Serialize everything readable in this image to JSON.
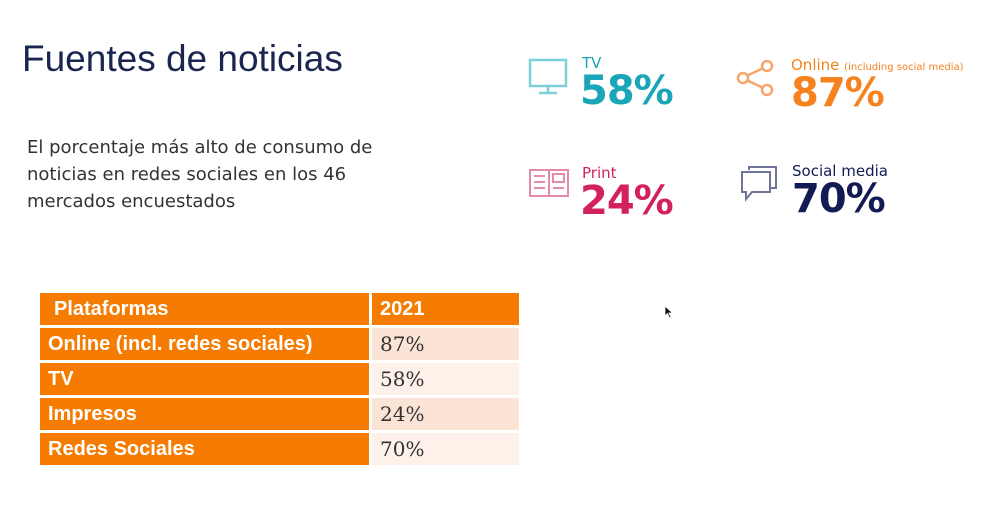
{
  "title": "Fuentes de noticias",
  "subtitle": "El porcentaje más alto de consumo de noticias en redes sociales en los 46 mercados encuestados",
  "stats": [
    {
      "label": "TV",
      "note": "",
      "value": "58%",
      "color": "#1aa5b8",
      "icon": "tv-icon"
    },
    {
      "label": "Online",
      "note": "(including social media)",
      "value": "87%",
      "color": "#f5821f",
      "icon": "share-icon"
    },
    {
      "label": "Print",
      "note": "",
      "value": "24%",
      "color": "#d3205e",
      "icon": "newspaper-icon"
    },
    {
      "label": "Social media",
      "note": "",
      "value": "70%",
      "color": "#131b55",
      "icon": "chat-bubbles-icon"
    }
  ],
  "table": {
    "headers": [
      "Plataformas",
      "2021"
    ],
    "rows": [
      [
        "Online (incl. redes sociales)",
        "87%"
      ],
      [
        "TV",
        "58%"
      ],
      [
        "Impresos",
        "24%"
      ],
      [
        "Redes Sociales",
        "70%"
      ]
    ]
  }
}
